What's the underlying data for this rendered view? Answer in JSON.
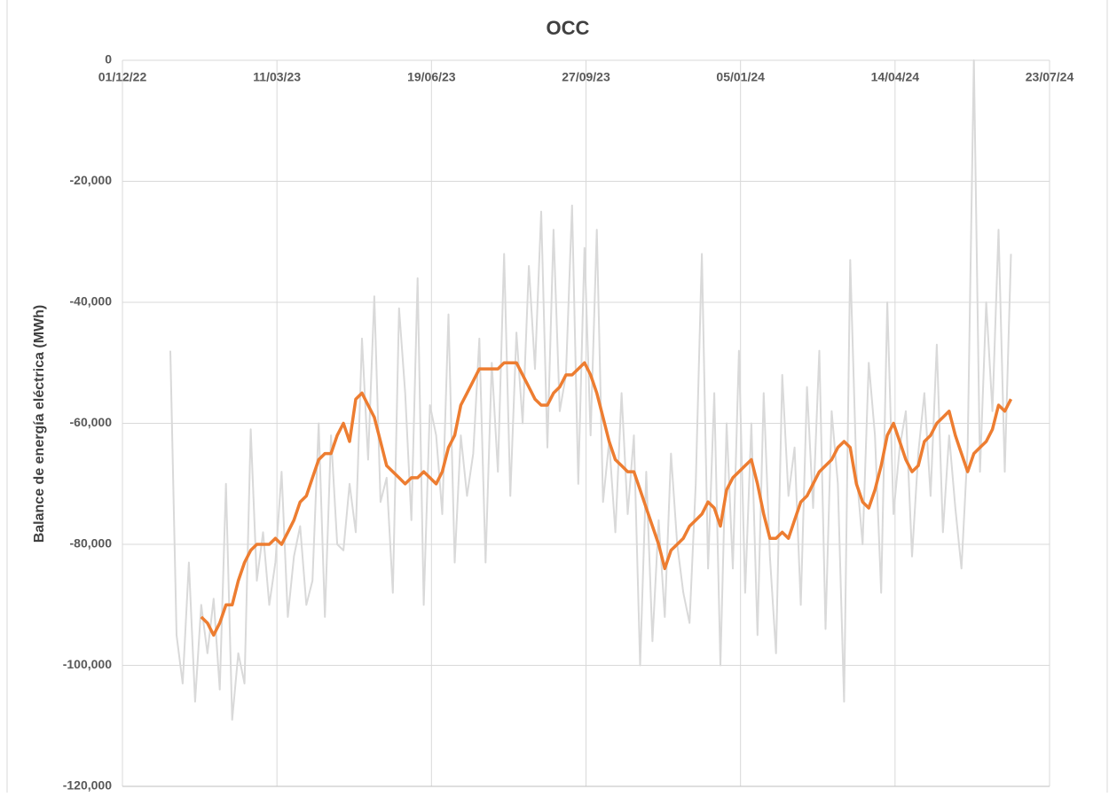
{
  "chart_data": {
    "type": "line",
    "title": "OCC",
    "y_label": "Balance de energía eléctrica (MWh)",
    "grid": true,
    "xlim": [
      "2022-12-01",
      "2024-07-23"
    ],
    "xticks": [
      {
        "value": "2022-12-01",
        "label": "01/12/22"
      },
      {
        "value": "2023-03-11",
        "label": "11/03/23"
      },
      {
        "value": "2023-06-19",
        "label": "19/06/23"
      },
      {
        "value": "2023-09-27",
        "label": "27/09/23"
      },
      {
        "value": "2024-01-05",
        "label": "05/01/24"
      },
      {
        "value": "2024-04-14",
        "label": "14/04/24"
      },
      {
        "value": "2024-07-23",
        "label": "23/07/24"
      }
    ],
    "ylim": [
      -120000,
      0
    ],
    "yticks": [
      0,
      {
        "value": -20000,
        "label": "-20,000"
      },
      {
        "value": -40000,
        "label": "-40,000"
      },
      {
        "value": -60000,
        "label": "-60,000"
      },
      {
        "value": -80000,
        "label": "-80,000"
      },
      {
        "value": -100000,
        "label": "-100,000"
      },
      {
        "value": -120000,
        "label": "-120,000"
      }
    ],
    "x": [
      "2023-01-01",
      "2023-01-05",
      "2023-01-09",
      "2023-01-13",
      "2023-01-17",
      "2023-01-21",
      "2023-01-25",
      "2023-01-29",
      "2023-02-02",
      "2023-02-06",
      "2023-02-10",
      "2023-02-14",
      "2023-02-18",
      "2023-02-22",
      "2023-02-26",
      "2023-03-02",
      "2023-03-06",
      "2023-03-10",
      "2023-03-14",
      "2023-03-18",
      "2023-03-22",
      "2023-03-26",
      "2023-03-30",
      "2023-04-03",
      "2023-04-07",
      "2023-04-11",
      "2023-04-15",
      "2023-04-19",
      "2023-04-23",
      "2023-04-27",
      "2023-05-01",
      "2023-05-05",
      "2023-05-09",
      "2023-05-13",
      "2023-05-17",
      "2023-05-21",
      "2023-05-25",
      "2023-05-29",
      "2023-06-02",
      "2023-06-06",
      "2023-06-10",
      "2023-06-14",
      "2023-06-18",
      "2023-06-22",
      "2023-06-26",
      "2023-06-30",
      "2023-07-04",
      "2023-07-08",
      "2023-07-12",
      "2023-07-16",
      "2023-07-20",
      "2023-07-24",
      "2023-07-28",
      "2023-08-01",
      "2023-08-05",
      "2023-08-09",
      "2023-08-13",
      "2023-08-17",
      "2023-08-21",
      "2023-08-25",
      "2023-08-29",
      "2023-09-02",
      "2023-09-06",
      "2023-09-10",
      "2023-09-14",
      "2023-09-18",
      "2023-09-22",
      "2023-09-26",
      "2023-09-30",
      "2023-10-04",
      "2023-10-08",
      "2023-10-12",
      "2023-10-16",
      "2023-10-20",
      "2023-10-24",
      "2023-10-28",
      "2023-11-01",
      "2023-11-05",
      "2023-11-09",
      "2023-11-13",
      "2023-11-17",
      "2023-11-21",
      "2023-11-25",
      "2023-11-29",
      "2023-12-03",
      "2023-12-07",
      "2023-12-11",
      "2023-12-15",
      "2023-12-19",
      "2023-12-23",
      "2023-12-27",
      "2023-12-31",
      "2024-01-04",
      "2024-01-08",
      "2024-01-12",
      "2024-01-16",
      "2024-01-20",
      "2024-01-24",
      "2024-01-28",
      "2024-02-01",
      "2024-02-05",
      "2024-02-09",
      "2024-02-13",
      "2024-02-17",
      "2024-02-21",
      "2024-02-25",
      "2024-02-29",
      "2024-03-04",
      "2024-03-08",
      "2024-03-12",
      "2024-03-16",
      "2024-03-20",
      "2024-03-24",
      "2024-03-28",
      "2024-04-01",
      "2024-04-05",
      "2024-04-09",
      "2024-04-13",
      "2024-04-17",
      "2024-04-21",
      "2024-04-25",
      "2024-04-29",
      "2024-05-03",
      "2024-05-07",
      "2024-05-11",
      "2024-05-15",
      "2024-05-19",
      "2024-05-23",
      "2024-05-27",
      "2024-05-31",
      "2024-06-04",
      "2024-06-08",
      "2024-06-12",
      "2024-06-16",
      "2024-06-20",
      "2024-06-24",
      "2024-06-28"
    ],
    "series": [
      {
        "color": "#d9d9d9",
        "width": 2,
        "values": [
          -48000,
          -95000,
          -103000,
          -83000,
          -106000,
          -90000,
          -98000,
          -89000,
          -104000,
          -70000,
          -109000,
          -98000,
          -103000,
          -61000,
          -86000,
          -78000,
          -90000,
          -83000,
          -68000,
          -92000,
          -82000,
          -77000,
          -90000,
          -86000,
          -60000,
          -92000,
          -62000,
          -80000,
          -81000,
          -70000,
          -78000,
          -46000,
          -66000,
          -39000,
          -73000,
          -69000,
          -88000,
          -41000,
          -55000,
          -76000,
          -36000,
          -90000,
          -57000,
          -62000,
          -75000,
          -42000,
          -83000,
          -62000,
          -72000,
          -65000,
          -46000,
          -83000,
          -50000,
          -68000,
          -32000,
          -72000,
          -45000,
          -60000,
          -34000,
          -51000,
          -25000,
          -64000,
          -28000,
          -58000,
          -52000,
          -24000,
          -70000,
          -31000,
          -62000,
          -28000,
          -73000,
          -63000,
          -78000,
          -55000,
          -75000,
          -62000,
          -100000,
          -68000,
          -96000,
          -76000,
          -92000,
          -65000,
          -80000,
          -88000,
          -93000,
          -70000,
          -32000,
          -84000,
          -55000,
          -100000,
          -60000,
          -84000,
          -48000,
          -88000,
          -60000,
          -95000,
          -55000,
          -82000,
          -98000,
          -52000,
          -72000,
          -64000,
          -90000,
          -54000,
          -74000,
          -48000,
          -94000,
          -58000,
          -70000,
          -106000,
          -33000,
          -68000,
          -80000,
          -50000,
          -62000,
          -88000,
          -40000,
          -75000,
          -64000,
          -58000,
          -82000,
          -65000,
          -55000,
          -72000,
          -47000,
          -78000,
          -62000,
          -74000,
          -84000,
          -64000,
          0,
          -68000,
          -40000,
          -58000,
          -28000,
          -68000,
          -32000
        ]
      },
      {
        "color": "#ed7d31",
        "width": 3.5,
        "values": [
          null,
          null,
          null,
          null,
          null,
          -92000,
          -93000,
          -95000,
          -93000,
          -90000,
          -90000,
          -86000,
          -83000,
          -81000,
          -80000,
          -80000,
          -80000,
          -79000,
          -80000,
          -78000,
          -76000,
          -73000,
          -72000,
          -69000,
          -66000,
          -65000,
          -65000,
          -62000,
          -60000,
          -63000,
          -56000,
          -55000,
          -57000,
          -59000,
          -63000,
          -67000,
          -68000,
          -69000,
          -70000,
          -69000,
          -69000,
          -68000,
          -69000,
          -70000,
          -68000,
          -64000,
          -62000,
          -57000,
          -55000,
          -53000,
          -51000,
          -51000,
          -51000,
          -51000,
          -50000,
          -50000,
          -50000,
          -52000,
          -54000,
          -56000,
          -57000,
          -57000,
          -55000,
          -54000,
          -52000,
          -52000,
          -51000,
          -50000,
          -52000,
          -55000,
          -59000,
          -63000,
          -66000,
          -67000,
          -68000,
          -68000,
          -71000,
          -74000,
          -77000,
          -80000,
          -84000,
          -81000,
          -80000,
          -79000,
          -77000,
          -76000,
          -75000,
          -73000,
          -74000,
          -77000,
          -71000,
          -69000,
          -68000,
          -67000,
          -66000,
          -70000,
          -75000,
          -79000,
          -79000,
          -78000,
          -79000,
          -76000,
          -73000,
          -72000,
          -70000,
          -68000,
          -67000,
          -66000,
          -64000,
          -63000,
          -64000,
          -70000,
          -73000,
          -74000,
          -71000,
          -67000,
          -62000,
          -60000,
          -63000,
          -66000,
          -68000,
          -67000,
          -63000,
          -62000,
          -60000,
          -59000,
          -58000,
          -62000,
          -65000,
          -68000,
          -65000,
          -64000,
          -63000,
          -61000,
          -57000,
          -58000,
          -56000
        ]
      }
    ]
  }
}
